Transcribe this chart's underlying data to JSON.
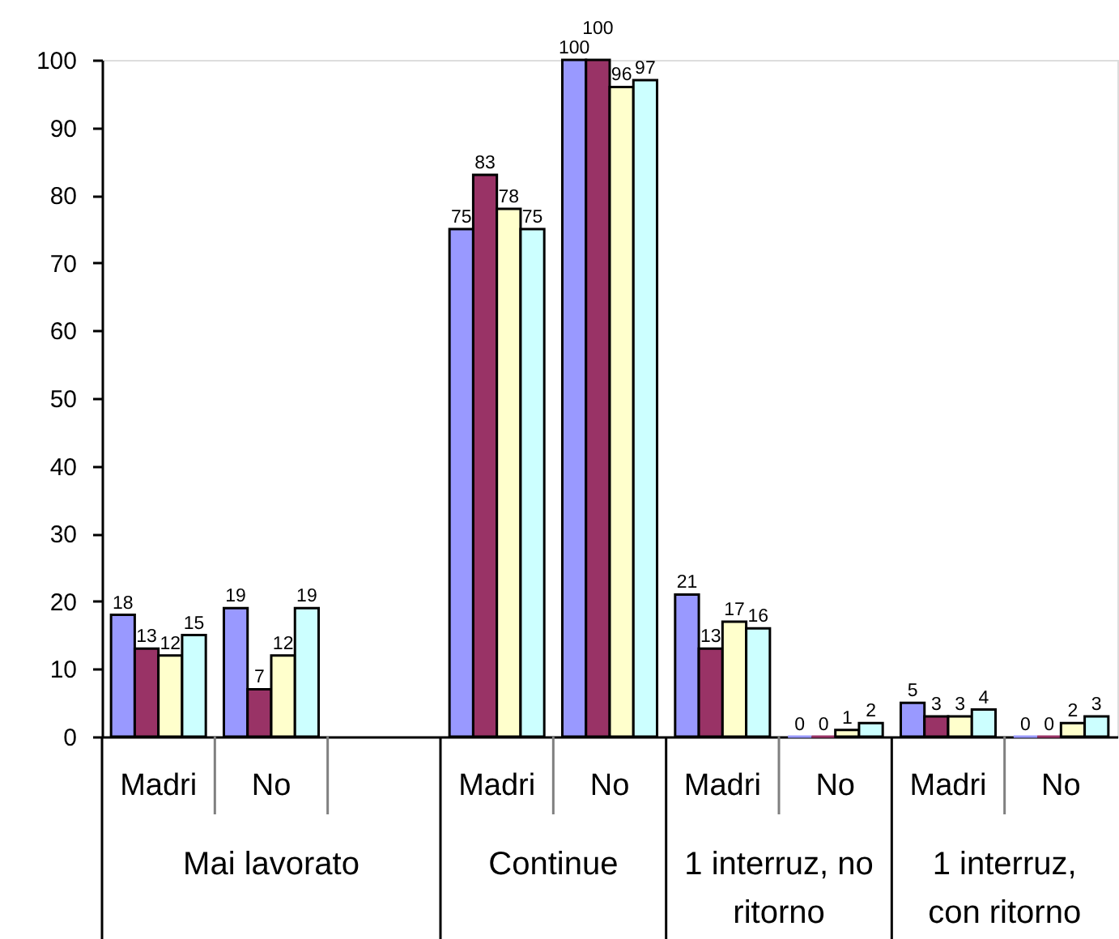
{
  "chart_data": {
    "type": "bar",
    "categories": [
      "Madri",
      "No",
      null,
      "Madri",
      "No",
      "Madri",
      "No",
      "Madri",
      "No"
    ],
    "annotations": [
      "Mai lavorato",
      "Continue",
      "1 interruz, no ritorno",
      "1 interruz, con ritorno"
    ],
    "series": [
      {
        "color": "#9999ff",
        "values": [
          18,
          19,
          null,
          75,
          100,
          21,
          0,
          5,
          0
        ]
      },
      {
        "color": "#993366",
        "values": [
          13,
          7,
          null,
          83,
          100,
          13,
          0,
          3,
          0
        ]
      },
      {
        "color": "#ffffcc",
        "values": [
          12,
          12,
          null,
          78,
          96,
          17,
          1,
          3,
          2
        ]
      },
      {
        "color": "#ccffff",
        "values": [
          15,
          19,
          null,
          75,
          97,
          16,
          2,
          4,
          3
        ]
      }
    ],
    "ylim": [
      0,
      100
    ],
    "yticks": [
      0,
      10,
      20,
      30,
      40,
      50,
      60,
      70,
      80,
      90,
      100
    ],
    "grid": false,
    "data_labels": true
  }
}
